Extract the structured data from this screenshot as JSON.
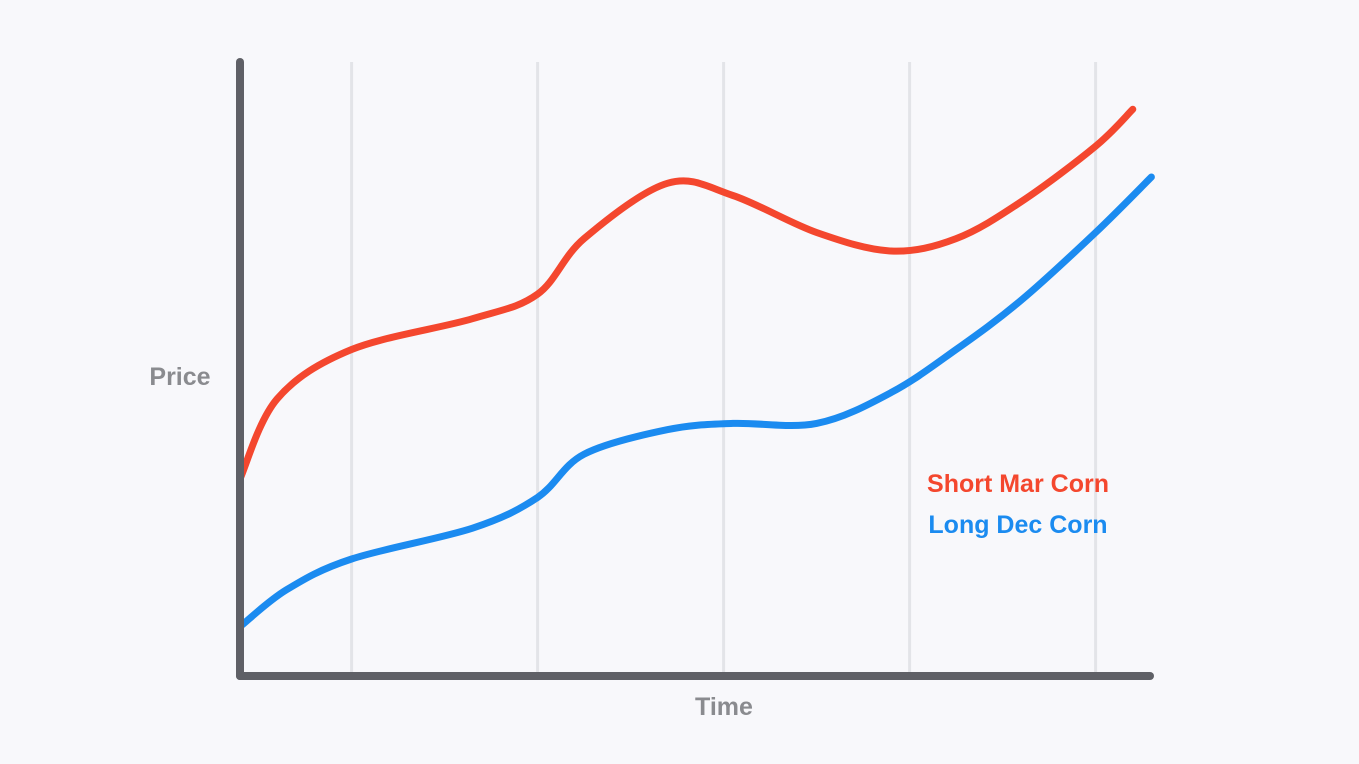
{
  "chart_data": {
    "type": "line",
    "title": "",
    "xlabel": "Time",
    "ylabel": "Price",
    "xlim": [
      0,
      10
    ],
    "ylim": [
      0,
      10
    ],
    "grid": {
      "vertical": true,
      "horizontal": false
    },
    "x_gridlines": [
      1.2,
      3.2,
      5.2,
      7.2,
      9.2
    ],
    "legend_placement": "center-right",
    "series": [
      {
        "name": "Short Mar Corn",
        "color": "#f4472e",
        "x": [
          0,
          0.4,
          1.2,
          2.5,
          3.2,
          3.7,
          4.6,
          5.3,
          6.2,
          7.0,
          7.7,
          8.4,
          9.2,
          9.6
        ],
        "y": [
          3.2,
          4.5,
          5.3,
          5.8,
          6.2,
          7.1,
          8.0,
          7.8,
          7.2,
          6.9,
          7.1,
          7.7,
          8.6,
          9.2
        ]
      },
      {
        "name": "Long Dec Corn",
        "color": "#1b8bf0",
        "x": [
          0,
          0.5,
          1.2,
          2.5,
          3.2,
          3.7,
          4.6,
          5.3,
          6.2,
          7.0,
          7.7,
          8.4,
          9.2,
          9.8
        ],
        "y": [
          0.8,
          1.4,
          1.9,
          2.4,
          2.9,
          3.6,
          4.0,
          4.1,
          4.1,
          4.6,
          5.3,
          6.1,
          7.2,
          8.1
        ]
      }
    ]
  }
}
